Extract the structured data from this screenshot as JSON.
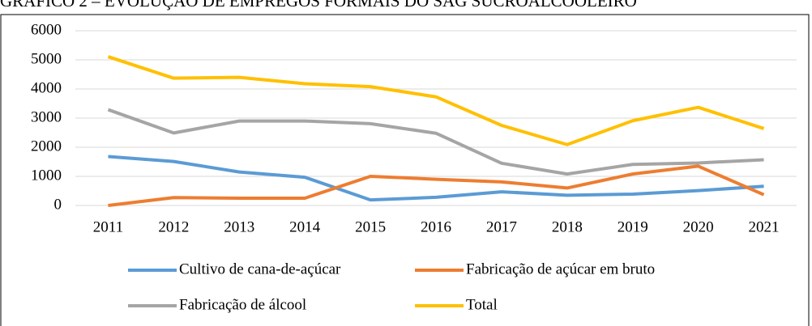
{
  "chart_data": {
    "type": "line",
    "title": "GRÁFICO 2 – EVOLUÇÃO DE EMPREGOS FORMAIS DO SAG SUCROALCOOLEIRO",
    "categories": [
      "2011",
      "2012",
      "2013",
      "2014",
      "2015",
      "2016",
      "2017",
      "2018",
      "2019",
      "2020",
      "2021"
    ],
    "series": [
      {
        "name": "Cultivo de cana-de-açúcar",
        "color": "#5b9bd5",
        "values": [
          1680,
          1510,
          1150,
          970,
          190,
          280,
          470,
          350,
          390,
          510,
          660
        ]
      },
      {
        "name": "Fabricação de açúcar em bruto",
        "color": "#ed7d31",
        "values": [
          0,
          270,
          250,
          250,
          1000,
          900,
          810,
          600,
          1080,
          1350,
          370
        ]
      },
      {
        "name": "Fabricação de álcool",
        "color": "#a5a5a5",
        "values": [
          3290,
          2490,
          2900,
          2900,
          2810,
          2480,
          1450,
          1080,
          1410,
          1460,
          1570
        ]
      },
      {
        "name": "Total",
        "color": "#ffc000",
        "values": [
          5110,
          4370,
          4400,
          4180,
          4080,
          3730,
          2750,
          2090,
          2910,
          3370,
          2640
        ]
      }
    ],
    "ylim": [
      0,
      6000
    ],
    "yticks": [
      0,
      1000,
      2000,
      3000,
      4000,
      5000,
      6000
    ],
    "grid": true,
    "legend": "bottom"
  }
}
